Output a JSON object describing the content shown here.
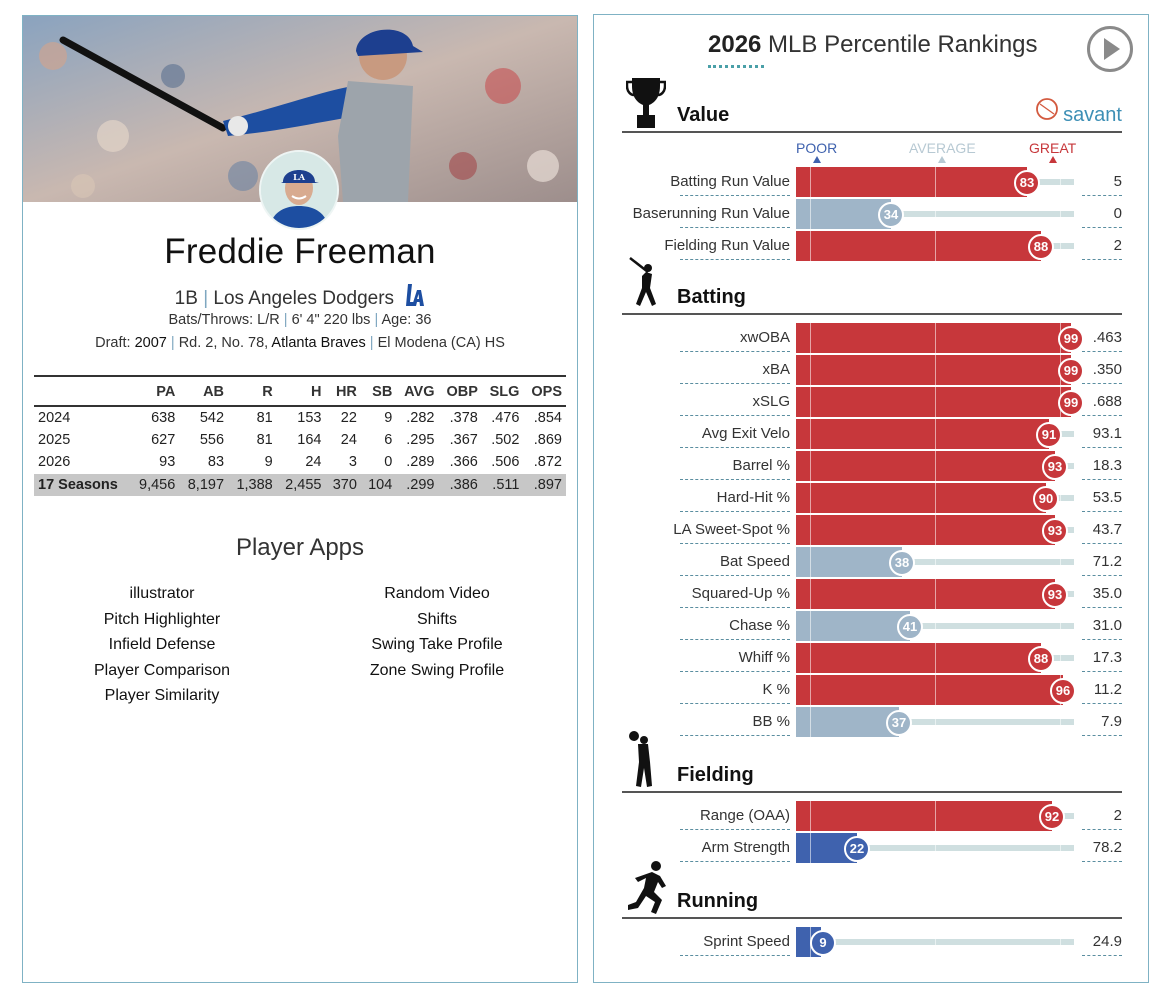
{
  "player": {
    "name": "Freddie Freeman",
    "position": "1B",
    "team": "Los Angeles Dodgers",
    "bats_throws_label": "Bats/Throws:",
    "bats_throws": "L/R",
    "height_weight": "6' 4\" 220 lbs",
    "age_label": "Age:",
    "age": "36",
    "draft_label": "Draft:",
    "draft_year": "2007",
    "draft_round": "Rd. 2, No. 78,",
    "draft_team": "Atlanta Braves",
    "draft_school": "El Modena (CA) HS"
  },
  "stats": {
    "headers": [
      "",
      "PA",
      "AB",
      "R",
      "H",
      "HR",
      "SB",
      "AVG",
      "OBP",
      "SLG",
      "OPS"
    ],
    "rows": [
      [
        "2024",
        "638",
        "542",
        "81",
        "153",
        "22",
        "9",
        ".282",
        ".378",
        ".476",
        ".854"
      ],
      [
        "2025",
        "627",
        "556",
        "81",
        "164",
        "24",
        "6",
        ".295",
        ".367",
        ".502",
        ".869"
      ],
      [
        "2026",
        "93",
        "83",
        "9",
        "24",
        "3",
        "0",
        ".289",
        ".366",
        ".506",
        ".872"
      ]
    ],
    "career": [
      "17 Seasons",
      "9,456",
      "8,197",
      "1,388",
      "2,455",
      "370",
      "104",
      ".299",
      ".386",
      ".511",
      ".897"
    ]
  },
  "apps": {
    "title": "Player Apps",
    "left": [
      "illustrator",
      "Pitch Highlighter",
      "Infield Defense",
      "Player Comparison",
      "Player Similarity"
    ],
    "right": [
      "Random Video",
      "Shifts",
      "Swing Take Profile",
      "Zone Swing Profile"
    ]
  },
  "rankings": {
    "title_year": "2026",
    "title_rest": " MLB Percentile Rankings",
    "savant_label": "savant",
    "legend": {
      "poor": "POOR",
      "average": "AVERAGE",
      "great": "GREAT"
    },
    "colors": {
      "great": "#c7373b",
      "poor": "#3f62ae",
      "avg": "#b7c9d3",
      "track": "#cfdfe0"
    },
    "sections": [
      {
        "key": "value",
        "label": "Value",
        "icon": "trophy-icon",
        "metrics": [
          {
            "label": "Batting Run Value",
            "percentile": 83,
            "value": "5"
          },
          {
            "label": "Baserunning Run Value",
            "percentile": 34,
            "value": "0"
          },
          {
            "label": "Fielding Run Value",
            "percentile": 88,
            "value": "2"
          }
        ]
      },
      {
        "key": "batting",
        "label": "Batting",
        "icon": "batter-icon",
        "metrics": [
          {
            "label": "xwOBA",
            "percentile": 99,
            "value": ".463"
          },
          {
            "label": "xBA",
            "percentile": 99,
            "value": ".350"
          },
          {
            "label": "xSLG",
            "percentile": 99,
            "value": ".688"
          },
          {
            "label": "Avg Exit Velo",
            "percentile": 91,
            "value": "93.1"
          },
          {
            "label": "Barrel %",
            "percentile": 93,
            "value": "18.3"
          },
          {
            "label": "Hard-Hit %",
            "percentile": 90,
            "value": "53.5"
          },
          {
            "label": "LA Sweet-Spot %",
            "percentile": 93,
            "value": "43.7"
          },
          {
            "label": "Bat Speed",
            "percentile": 38,
            "value": "71.2"
          },
          {
            "label": "Squared-Up %",
            "percentile": 93,
            "value": "35.0"
          },
          {
            "label": "Chase %",
            "percentile": 41,
            "value": "31.0"
          },
          {
            "label": "Whiff %",
            "percentile": 88,
            "value": "17.3"
          },
          {
            "label": "K %",
            "percentile": 96,
            "value": "11.2"
          },
          {
            "label": "BB %",
            "percentile": 37,
            "value": "7.9"
          }
        ]
      },
      {
        "key": "fielding",
        "label": "Fielding",
        "icon": "fielder-icon",
        "metrics": [
          {
            "label": "Range (OAA)",
            "percentile": 92,
            "value": "2"
          },
          {
            "label": "Arm Strength",
            "percentile": 22,
            "value": "78.2"
          }
        ]
      },
      {
        "key": "running",
        "label": "Running",
        "icon": "runner-icon",
        "metrics": [
          {
            "label": "Sprint Speed",
            "percentile": 9,
            "value": "24.9"
          }
        ]
      }
    ]
  }
}
